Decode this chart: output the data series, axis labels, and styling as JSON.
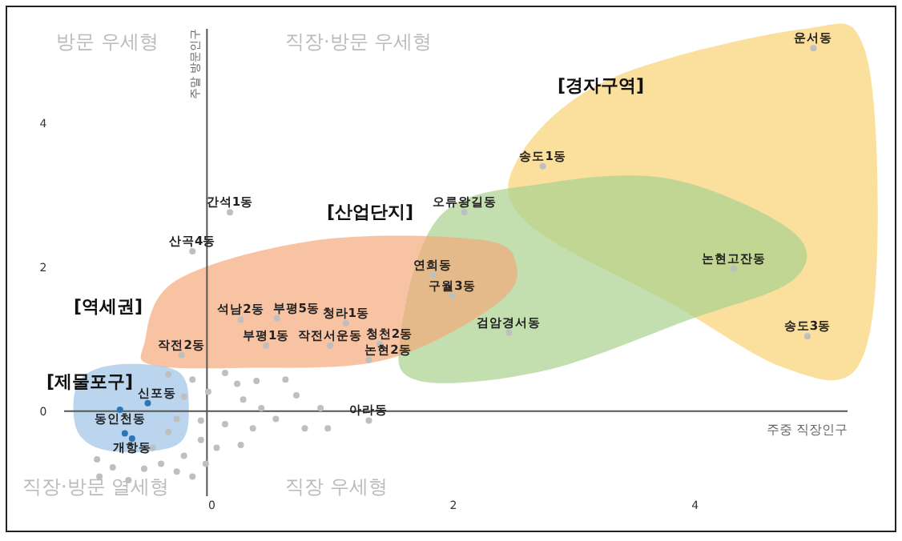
{
  "chart_data": {
    "type": "scatter",
    "xlabel": "주중 직장인구",
    "ylabel": "주말 방문인구",
    "xlim": [
      -1.66,
      5.7
    ],
    "ylim": [
      -1.67,
      5.62
    ],
    "xticks": [
      0,
      2,
      4
    ],
    "yticks": [
      0,
      2,
      4
    ],
    "marker": "circle",
    "series": [
      {
        "color": "#2e75b6",
        "x": [
          -0.49,
          -0.72,
          -0.68,
          -0.62
        ],
        "values": [
          0.11,
          0.02,
          -0.31,
          -0.38
        ]
      },
      {
        "color": "#bfbfbf",
        "x": [
          5.02,
          2.78,
          4.36,
          4.97,
          2.13,
          0.19,
          -0.12,
          1.87,
          2.03,
          2.5,
          0.28,
          0.58,
          1.15,
          -0.21,
          0.49,
          1.02,
          1.43,
          1.34,
          1.34,
          -0.32,
          -0.12,
          0.15,
          0.25,
          0.41,
          0.65,
          -0.19,
          0.01,
          0.3,
          0.45,
          0.74,
          0.94,
          -0.25,
          -0.05,
          0.15,
          0.38,
          0.57,
          0.81,
          1.0,
          -0.05,
          0.08,
          -0.19,
          0.28,
          -0.38,
          -0.25,
          -0.12,
          -0.01,
          -0.45,
          -0.32,
          -0.91,
          -0.89,
          -0.78,
          -0.65,
          -0.52
        ],
        "values": [
          5.04,
          3.4,
          1.98,
          1.04,
          2.76,
          2.76,
          2.22,
          1.89,
          1.6,
          1.09,
          1.27,
          1.29,
          1.22,
          0.78,
          0.91,
          0.91,
          0.93,
          0.71,
          -0.13,
          0.51,
          0.44,
          0.53,
          0.38,
          0.42,
          0.44,
          0.2,
          0.27,
          0.16,
          0.04,
          0.22,
          0.04,
          -0.11,
          -0.13,
          -0.18,
          -0.24,
          -0.11,
          -0.24,
          -0.24,
          -0.4,
          -0.51,
          -0.62,
          -0.47,
          -0.73,
          -0.84,
          -0.91,
          -0.73,
          -0.51,
          -0.29,
          -0.67,
          -0.91,
          -0.78,
          -0.96,
          -0.8
        ]
      }
    ],
    "annotations": [
      "방문 우세형",
      "직장·방문 우세형",
      "직장·방문 열세형",
      "직장 우세형",
      "[경자구역]",
      "[산업단지]",
      "[역세권]",
      "[제물포구]",
      {
        "text": "운서동",
        "x": 5.02,
        "y": 5.04
      },
      {
        "text": "송도1동",
        "x": 2.78,
        "y": 3.4
      },
      {
        "text": "논현고잔동",
        "x": 4.36,
        "y": 1.98
      },
      {
        "text": "송도3동",
        "x": 4.97,
        "y": 1.04
      },
      {
        "text": "오류왕길동",
        "x": 2.13,
        "y": 2.76
      },
      {
        "text": "간석1동",
        "x": 0.19,
        "y": 2.76
      },
      {
        "text": "산곡4동",
        "x": -0.12,
        "y": 2.22
      },
      {
        "text": "연희동",
        "x": 1.87,
        "y": 1.89
      },
      {
        "text": "구월3동",
        "x": 2.03,
        "y": 1.6
      },
      {
        "text": "검암경서동",
        "x": 2.5,
        "y": 1.09
      },
      {
        "text": "석남2동",
        "x": 0.28,
        "y": 1.27
      },
      {
        "text": "부평5동",
        "x": 0.58,
        "y": 1.29
      },
      {
        "text": "청라1동",
        "x": 1.15,
        "y": 1.22
      },
      {
        "text": "작전2동",
        "x": -0.21,
        "y": 0.78
      },
      {
        "text": "부평1동",
        "x": 0.49,
        "y": 0.91
      },
      {
        "text": "작전서운동",
        "x": 1.02,
        "y": 0.91
      },
      {
        "text": "청천2동",
        "x": 1.43,
        "y": 0.93
      },
      {
        "text": "논현2동",
        "x": 1.34,
        "y": 0.71
      },
      {
        "text": "신포동",
        "x": -0.49,
        "y": 0.11
      },
      {
        "text": "동인천동",
        "x": -0.72,
        "y": 0.02
      },
      {
        "text": "개항동",
        "x": -0.62,
        "y": -0.38
      },
      {
        "text": "아라동",
        "x": 1.34,
        "y": -0.13
      }
    ]
  }
}
